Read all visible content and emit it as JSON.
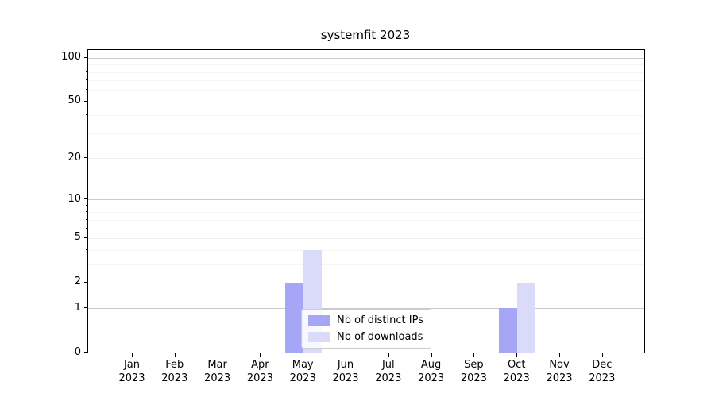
{
  "title": "systemfit 2023",
  "chart_data": {
    "type": "bar",
    "title": "systemfit 2023",
    "xlabel": "",
    "ylabel": "",
    "y_scale": "log1p",
    "ylim": [
      0,
      113
    ],
    "grid": "on",
    "legend_position": "lower center",
    "categories": [
      "Jan 2023",
      "Feb 2023",
      "Mar 2023",
      "Apr 2023",
      "May 2023",
      "Jun 2023",
      "Jul 2023",
      "Aug 2023",
      "Sep 2023",
      "Oct 2023",
      "Nov 2023",
      "Dec 2023"
    ],
    "series": [
      {
        "name": "Nb of distinct IPs",
        "color": "#a6a6f6",
        "values": [
          0,
          0,
          0,
          0,
          2,
          0,
          0,
          0,
          0,
          1,
          0,
          0
        ]
      },
      {
        "name": "Nb of downloads",
        "color": "#dadaf9",
        "values": [
          0,
          0,
          0,
          0,
          4,
          0,
          0,
          0,
          0,
          2,
          0,
          0
        ]
      }
    ],
    "ytick_labels": [
      100,
      50,
      20,
      10,
      5,
      2,
      1,
      0
    ],
    "minor_ticks": [
      3,
      4,
      6,
      7,
      8,
      9,
      30,
      40,
      60,
      70,
      80,
      90
    ],
    "emphasized_gridlines": [
      1,
      10,
      100
    ],
    "colors": {
      "spine": "#000000",
      "grid_emphasized": "#c9c9c9",
      "grid_major": "#ececec",
      "grid_minor": "#f5f5f5",
      "legend_border": "#cccccc",
      "text": "#000000"
    }
  }
}
